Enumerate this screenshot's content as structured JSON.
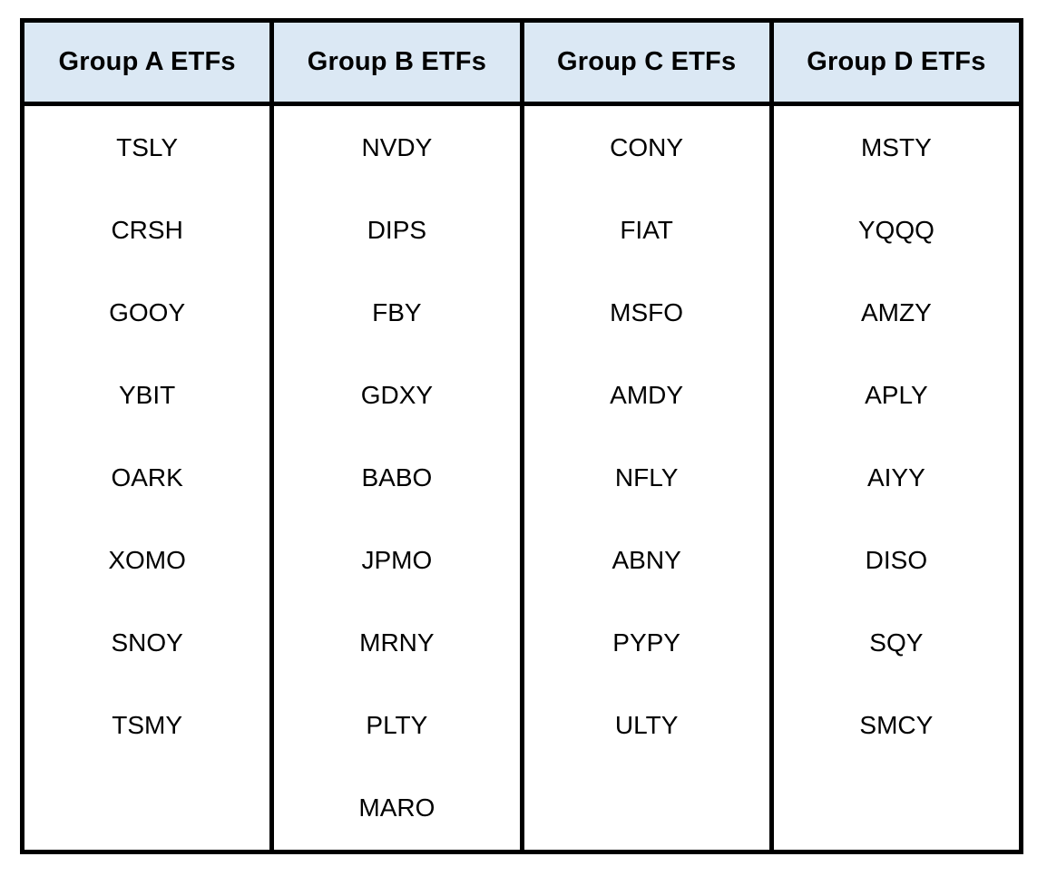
{
  "chart_data": {
    "type": "table",
    "title": "",
    "columns": [
      "Group A ETFs",
      "Group B ETFs",
      "Group C ETFs",
      "Group D ETFs"
    ],
    "rows": [
      [
        "TSLY",
        "NVDY",
        "CONY",
        "MSTY"
      ],
      [
        "CRSH",
        "DIPS",
        "FIAT",
        "YQQQ"
      ],
      [
        "GOOY",
        "FBY",
        "MSFO",
        "AMZY"
      ],
      [
        "YBIT",
        "GDXY",
        "AMDY",
        "APLY"
      ],
      [
        "OARK",
        "BABO",
        "NFLY",
        "AIYY"
      ],
      [
        "XOMO",
        "JPMO",
        "ABNY",
        "DISO"
      ],
      [
        "SNOY",
        "MRNY",
        "PYPY",
        "SQY"
      ],
      [
        "TSMY",
        "PLTY",
        "ULTY",
        "SMCY"
      ],
      [
        "",
        "MARO",
        "",
        ""
      ]
    ],
    "layout_hints": {
      "header_row_shaded": true,
      "internal_horizontal_gridlines": false,
      "body_slots_per_column": 9
    }
  },
  "table": {
    "columns": [
      {
        "header": "Group A ETFs",
        "tickers": [
          "TSLY",
          "CRSH",
          "GOOY",
          "YBIT",
          "OARK",
          "XOMO",
          "SNOY",
          "TSMY"
        ]
      },
      {
        "header": "Group B ETFs",
        "tickers": [
          "NVDY",
          "DIPS",
          "FBY",
          "GDXY",
          "BABO",
          "JPMO",
          "MRNY",
          "PLTY",
          "MARO"
        ]
      },
      {
        "header": "Group C ETFs",
        "tickers": [
          "CONY",
          "FIAT",
          "MSFO",
          "AMDY",
          "NFLY",
          "ABNY",
          "PYPY",
          "ULTY"
        ]
      },
      {
        "header": "Group D ETFs",
        "tickers": [
          "MSTY",
          "YQQQ",
          "AMZY",
          "APLY",
          "AIYY",
          "DISO",
          "SQY",
          "SMCY"
        ]
      }
    ]
  },
  "colors": {
    "header_bg": "#dbe8f4",
    "border": "#000000",
    "text": "#000000",
    "page_bg": "#ffffff"
  }
}
